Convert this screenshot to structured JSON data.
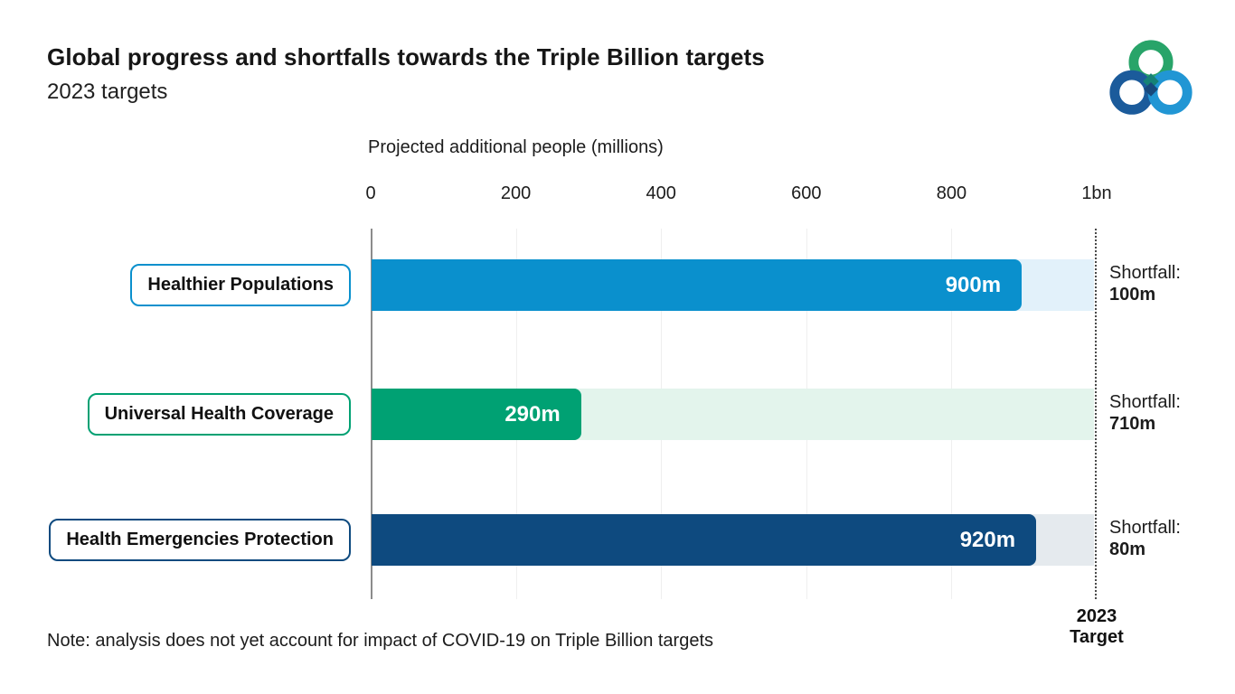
{
  "header": {
    "title": "Global progress and shortfalls towards the Triple Billion targets",
    "subtitle": "2023 targets"
  },
  "logo": {
    "colors": {
      "green": "#28a469",
      "dark_blue": "#1b5b9b",
      "light_blue": "#2196d4",
      "teal_diamond": "#158276",
      "navy_diamond": "#17497c"
    }
  },
  "chart_data": {
    "type": "bar",
    "orientation": "horizontal",
    "axis_title": "Projected additional people (millions)",
    "tick_labels": [
      "0",
      "200",
      "400",
      "600",
      "800",
      "1bn"
    ],
    "tick_values": [
      0,
      200,
      400,
      600,
      800,
      1000
    ],
    "xlim": [
      0,
      1000
    ],
    "grid": "vertical-light",
    "target_value": 1000,
    "target_label_line1": "2023",
    "target_label_line2": "Target",
    "rows": [
      {
        "label": "Healthier Populations",
        "value": 900,
        "value_label": "900m",
        "shortfall": 100,
        "shortfall_prefix": "Shortfall:",
        "shortfall_label": "100m",
        "color": "#0a90cd",
        "track_color": "#e2f1fa"
      },
      {
        "label": "Universal Health Coverage",
        "value": 290,
        "value_label": "290m",
        "shortfall": 710,
        "shortfall_prefix": "Shortfall:",
        "shortfall_label": "710m",
        "color": "#00a173",
        "track_color": "#e3f4ec"
      },
      {
        "label": "Health Emergencies Protection",
        "value": 920,
        "value_label": "920m",
        "shortfall": 80,
        "shortfall_prefix": "Shortfall:",
        "shortfall_label": "80m",
        "color": "#0e4a7f",
        "track_color": "#e5eaee"
      }
    ]
  },
  "note": "Note: analysis does not yet account for impact of COVID-19 on Triple Billion targets"
}
